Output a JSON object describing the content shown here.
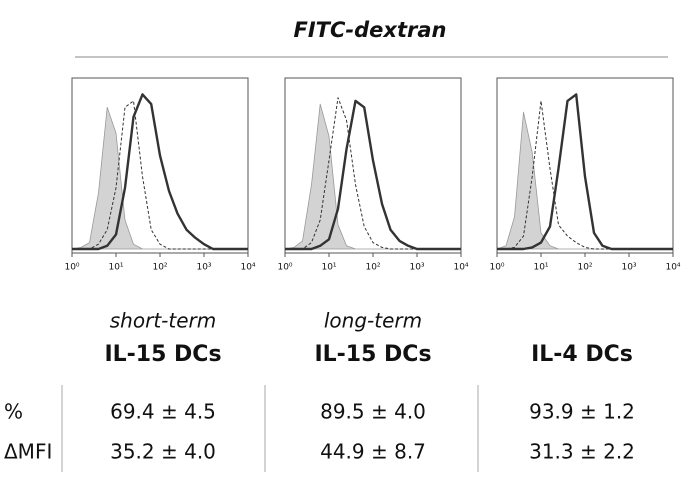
{
  "figure_title": "FITC-dextran",
  "chart_data": [
    {
      "type": "line",
      "xscale": "log",
      "xlim": [
        1,
        10000
      ],
      "ylim": [
        0,
        100
      ],
      "xticks": [
        {
          "value": 1,
          "label": "10⁰"
        },
        {
          "value": 10,
          "label": "10¹"
        },
        {
          "value": 100,
          "label": "10²"
        },
        {
          "value": 1000,
          "label": "10³"
        },
        {
          "value": 10000,
          "label": "10⁴"
        }
      ],
      "x": [
        1,
        1.6,
        2.5,
        4,
        6.3,
        10,
        16,
        25,
        40,
        63,
        100,
        160,
        250,
        400,
        630,
        1000,
        1600,
        2500,
        4000,
        6300,
        10000
      ],
      "series": [
        {
          "color": "#999999",
          "style": "filled",
          "values": [
            0,
            1,
            4,
            35,
            88,
            72,
            18,
            3,
            0,
            0,
            0,
            0,
            0,
            0,
            0,
            0,
            0,
            0,
            0,
            0,
            0
          ]
        },
        {
          "color": "#333333",
          "style": "dashed",
          "values": [
            0,
            0,
            0,
            3,
            12,
            38,
            88,
            92,
            45,
            12,
            3,
            0,
            0,
            0,
            0,
            0,
            0,
            0,
            0,
            0,
            0
          ]
        },
        {
          "color": "#333333",
          "style": "solid",
          "values": [
            0,
            0,
            0,
            0,
            2,
            9,
            38,
            82,
            96,
            90,
            58,
            36,
            22,
            12,
            7,
            3,
            0,
            0,
            0,
            0,
            0
          ]
        }
      ]
    },
    {
      "type": "line",
      "xscale": "log",
      "xlim": [
        1,
        10000
      ],
      "ylim": [
        0,
        100
      ],
      "xticks": [
        {
          "value": 1,
          "label": "10⁰"
        },
        {
          "value": 10,
          "label": "10¹"
        },
        {
          "value": 100,
          "label": "10²"
        },
        {
          "value": 1000,
          "label": "10³"
        },
        {
          "value": 10000,
          "label": "10⁴"
        }
      ],
      "x": [
        1,
        1.6,
        2.5,
        4,
        6.3,
        10,
        16,
        25,
        40,
        63,
        100,
        160,
        250,
        400,
        630,
        1000,
        1600,
        2500,
        4000,
        6300,
        10000
      ],
      "series": [
        {
          "color": "#999999",
          "style": "filled",
          "values": [
            0,
            1,
            5,
            40,
            90,
            70,
            15,
            2,
            0,
            0,
            0,
            0,
            0,
            0,
            0,
            0,
            0,
            0,
            0,
            0,
            0
          ]
        },
        {
          "color": "#333333",
          "style": "dashed",
          "values": [
            0,
            0,
            0,
            4,
            18,
            55,
            94,
            80,
            40,
            14,
            4,
            1,
            0,
            0,
            0,
            0,
            0,
            0,
            0,
            0,
            0
          ]
        },
        {
          "color": "#333333",
          "style": "solid",
          "values": [
            0,
            0,
            0,
            0,
            2,
            6,
            25,
            62,
            92,
            88,
            55,
            28,
            12,
            5,
            2,
            0,
            0,
            0,
            0,
            0,
            0
          ]
        }
      ]
    },
    {
      "type": "line",
      "xscale": "log",
      "xlim": [
        1,
        10000
      ],
      "ylim": [
        0,
        100
      ],
      "xticks": [
        {
          "value": 1,
          "label": "10⁰"
        },
        {
          "value": 10,
          "label": "10¹"
        },
        {
          "value": 100,
          "label": "10²"
        },
        {
          "value": 1000,
          "label": "10³"
        },
        {
          "value": 10000,
          "label": "10⁴"
        }
      ],
      "x": [
        1,
        1.6,
        2.5,
        4,
        6.3,
        10,
        16,
        25,
        40,
        63,
        100,
        160,
        250,
        400,
        630,
        1000,
        1600,
        2500,
        4000,
        6300,
        10000
      ],
      "series": [
        {
          "color": "#999999",
          "style": "filled",
          "values": [
            0,
            2,
            20,
            85,
            60,
            10,
            2,
            0,
            0,
            0,
            0,
            0,
            0,
            0,
            0,
            0,
            0,
            0,
            0,
            0,
            0
          ]
        },
        {
          "color": "#333333",
          "style": "dashed",
          "values": [
            0,
            0,
            1,
            8,
            45,
            92,
            50,
            15,
            8,
            4,
            1,
            0,
            0,
            0,
            0,
            0,
            0,
            0,
            0,
            0,
            0
          ]
        },
        {
          "color": "#333333",
          "style": "solid",
          "values": [
            0,
            0,
            0,
            0,
            1,
            4,
            14,
            50,
            92,
            96,
            45,
            10,
            2,
            0,
            0,
            0,
            0,
            0,
            0,
            0,
            0
          ]
        }
      ]
    }
  ],
  "groups": [
    {
      "subtitle": "short-term",
      "name": "IL-15 DCs"
    },
    {
      "subtitle": "long-term",
      "name": "IL-15 DCs"
    },
    {
      "name": "IL-4 DCs"
    }
  ],
  "table": {
    "row_labels": [
      "%",
      "ΔMFI"
    ],
    "rows": [
      [
        "69.4 ± 4.5",
        "89.5 ± 4.0",
        "93.9 ± 1.2"
      ],
      [
        "35.2 ± 4.0",
        "44.9 ± 8.7",
        "31.3 ± 2.2"
      ]
    ]
  }
}
